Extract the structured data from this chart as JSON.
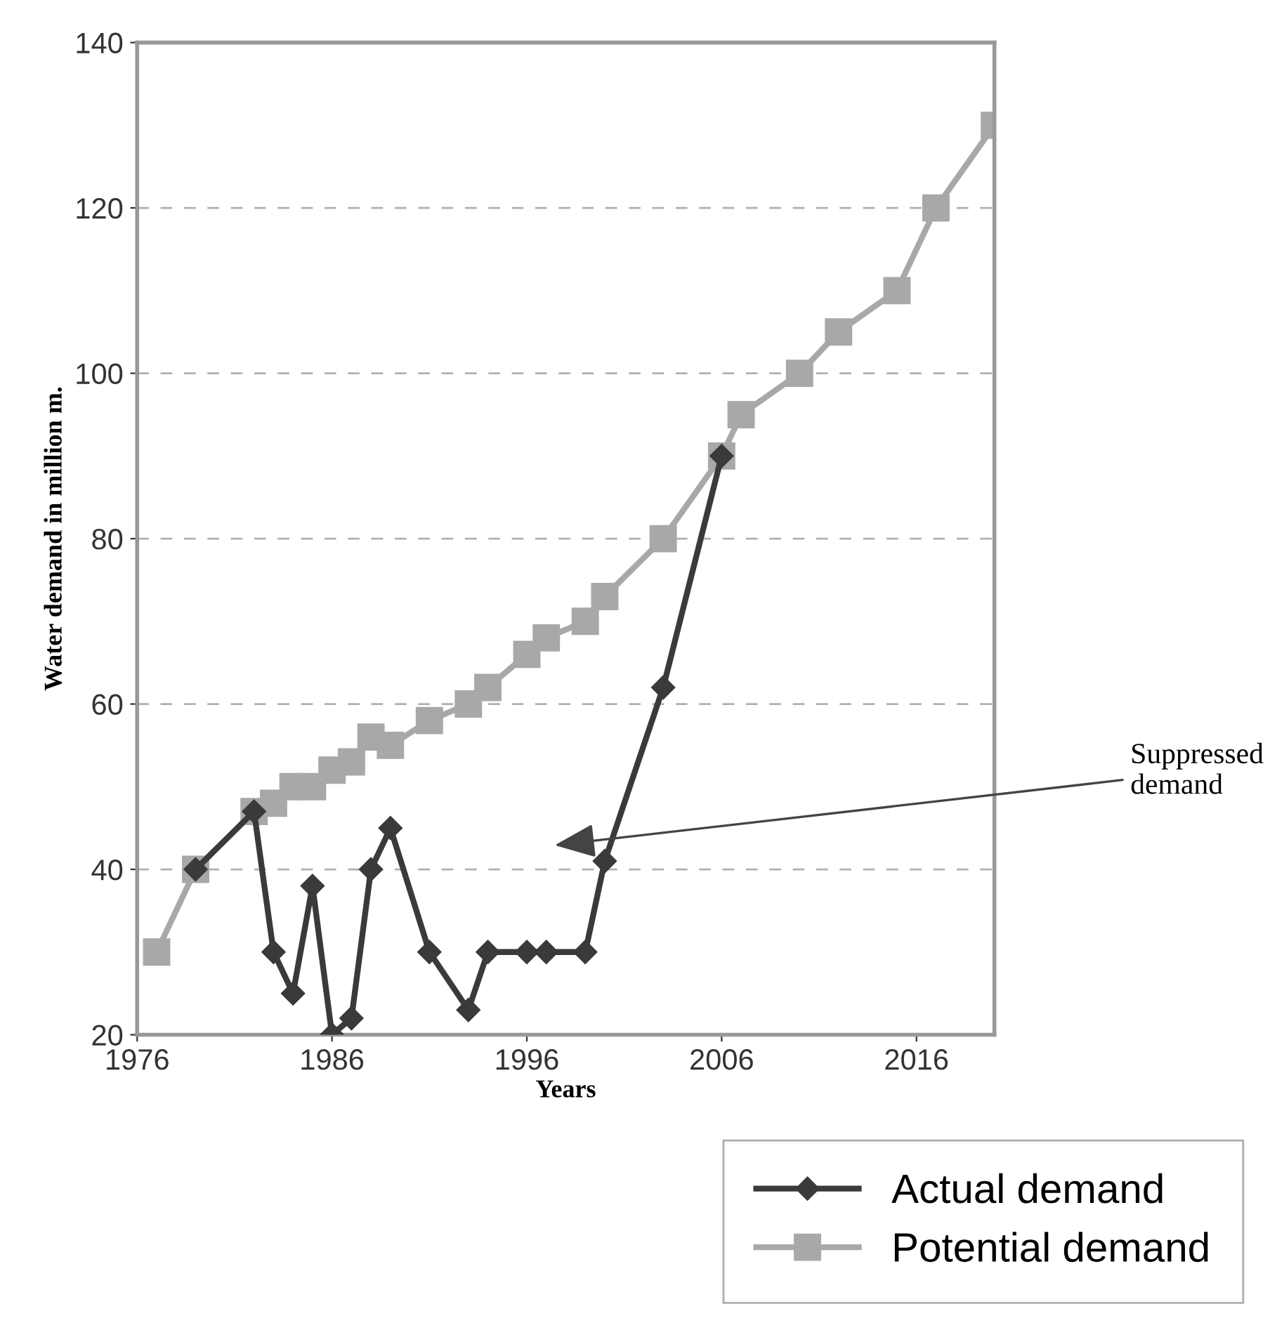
{
  "chart_data": {
    "type": "line",
    "xlabel": "Years",
    "ylabel": "Water demand in million m.",
    "xlim": [
      1976,
      2020
    ],
    "xticks": [
      1976,
      1986,
      1996,
      2006,
      2016
    ],
    "ylim": [
      20,
      140
    ],
    "yticks": [
      20,
      40,
      60,
      80,
      100,
      120,
      140
    ],
    "grid": "y",
    "legend": "bottom right",
    "line_style": "solid",
    "series": [
      {
        "name": "Actual demand",
        "color": "#3a3a3a",
        "marker": "diamond",
        "x": [
          1979,
          1982,
          1983,
          1984,
          1985,
          1986,
          1987,
          1988,
          1989,
          1991,
          1993,
          1994,
          1996,
          1997,
          1999,
          2000,
          2003,
          2006
        ],
        "values": [
          40,
          47,
          30,
          25,
          38,
          20,
          22,
          40,
          45,
          30,
          23,
          30,
          30,
          30,
          30,
          41,
          62,
          90
        ]
      },
      {
        "name": "Potential demand",
        "color": "#a8a8a8",
        "marker": "square",
        "x": [
          1977,
          1979,
          1982,
          1983,
          1984,
          1985,
          1986,
          1987,
          1988,
          1989,
          1991,
          1993,
          1994,
          1996,
          1997,
          1999,
          2000,
          2003,
          2006,
          2007,
          2010,
          2012,
          2015,
          2017,
          2020
        ],
        "values": [
          30,
          40,
          47,
          48,
          50,
          50,
          52,
          53,
          56,
          55,
          58,
          60,
          62,
          66,
          68,
          70,
          73,
          80,
          90,
          95,
          100,
          105,
          110,
          120,
          130
        ]
      }
    ],
    "annotations": [
      "Suppressed\ndemand"
    ]
  }
}
